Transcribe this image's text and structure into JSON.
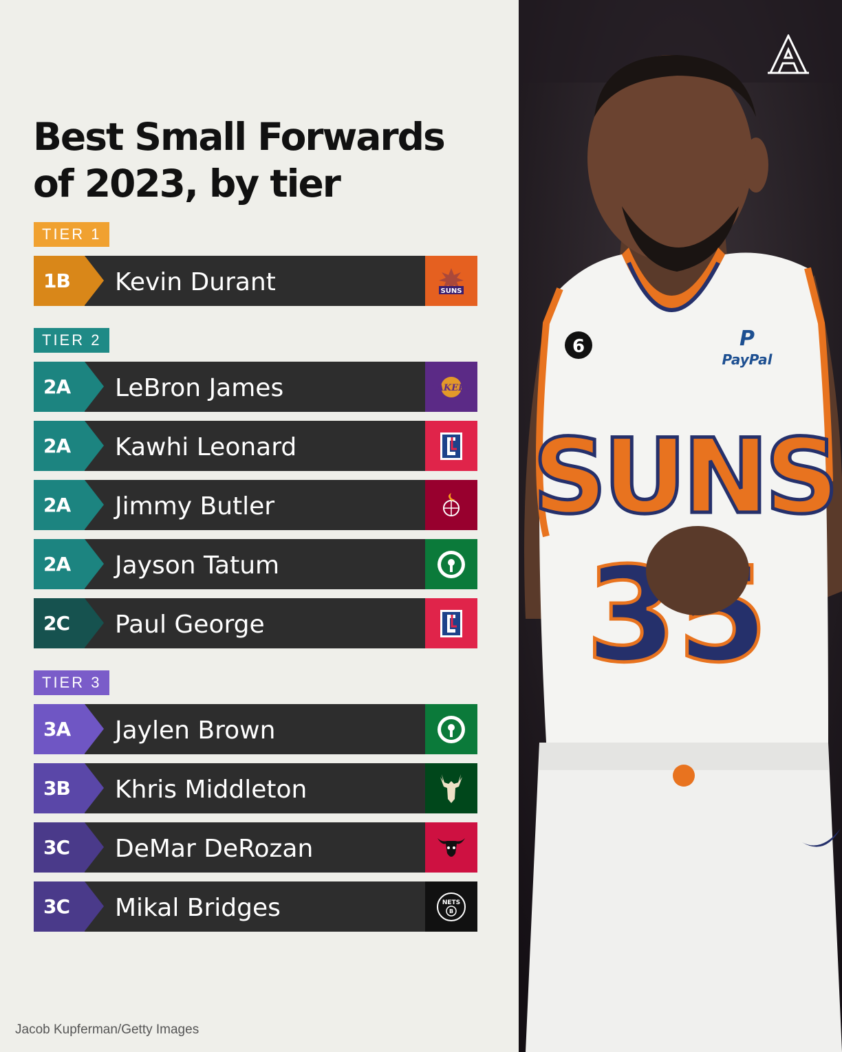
{
  "title": {
    "line1": "Best Small Forwards",
    "line2": "of 2023, by tier"
  },
  "colors": {
    "tier1": "#e8941f",
    "tier1_badge": "#d98719",
    "tier2": "#1f8a86",
    "tier2_badge": "#1c8480",
    "tier2c_badge": "#16524f",
    "tier3": "#7a5cc9",
    "tier3a_badge": "#6f56c4",
    "tier3b_badge": "#5a47a8",
    "tier3c_badge": "#4a3a8a",
    "row_bg": "#2d2d2d"
  },
  "tiers": [
    {
      "label": "TIER 1",
      "color": "#f0a130"
    },
    {
      "label": "TIER 2",
      "color": "#1f8a86"
    },
    {
      "label": "TIER 3",
      "color": "#7a5cc9"
    }
  ],
  "players": [
    {
      "rank": "1B",
      "name": "Kevin Durant",
      "team_icon": "suns-logo",
      "logo_bg": "#e56020"
    },
    {
      "rank": "2A",
      "name": "LeBron James",
      "team_icon": "lakers-logo",
      "logo_bg": "#5b2a86"
    },
    {
      "rank": "2A",
      "name": "Kawhi Leonard",
      "team_icon": "clippers-logo",
      "logo_bg": "#e0244a"
    },
    {
      "rank": "2A",
      "name": "Jimmy Butler",
      "team_icon": "heat-logo",
      "logo_bg": "#98002e"
    },
    {
      "rank": "2A",
      "name": "Jayson Tatum",
      "team_icon": "celtics-logo",
      "logo_bg": "#0b7a3a"
    },
    {
      "rank": "2C",
      "name": "Paul George",
      "team_icon": "clippers-logo",
      "logo_bg": "#e0244a"
    },
    {
      "rank": "3A",
      "name": "Jaylen Brown",
      "team_icon": "celtics-logo",
      "logo_bg": "#0b7a3a"
    },
    {
      "rank": "3B",
      "name": "Khris Middleton",
      "team_icon": "bucks-logo",
      "logo_bg": "#00471b"
    },
    {
      "rank": "3C",
      "name": "DeMar DeRozan",
      "team_icon": "bulls-logo",
      "logo_bg": "#ce1141"
    },
    {
      "rank": "3C",
      "name": "Mikal Bridges",
      "team_icon": "nets-logo",
      "logo_bg": "#111111"
    }
  ],
  "photo": {
    "jersey_text": "SUNS",
    "jersey_number": "35",
    "sleeve_patch": "6",
    "sponsor": "PayPal"
  },
  "credit": "Jacob Kupferman/Getty Images"
}
